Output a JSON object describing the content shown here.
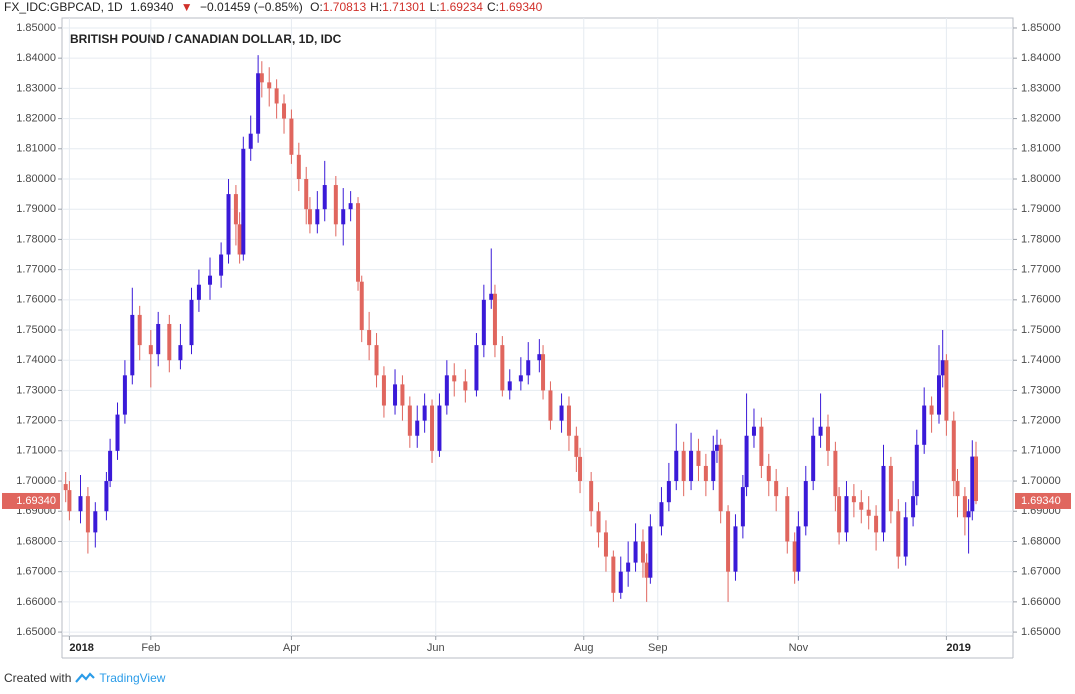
{
  "header": {
    "symbol": "FX_IDC:GBPCAD, 1D",
    "last": "1.69340",
    "arrow": "▼",
    "change": "−0.01459 (−0.85%)",
    "ohlc": [
      {
        "label": "O:",
        "value": "1.70813"
      },
      {
        "label": "H:",
        "value": "1.71301"
      },
      {
        "label": "L:",
        "value": "1.69234"
      },
      {
        "label": "C:",
        "value": "1.69340"
      }
    ]
  },
  "chart_data": {
    "type": "candlestick",
    "title": "BRITISH POUND / CANADIAN DOLLAR, 1D, IDC",
    "up_color": "#3a1ad8",
    "down_color": "#e0665e",
    "grid": true,
    "x": [
      0,
      1,
      4,
      6,
      8,
      11,
      12,
      14,
      16,
      18,
      20,
      23,
      25,
      28,
      31,
      34,
      36,
      39,
      42,
      44,
      46,
      47,
      48,
      50,
      52,
      53,
      55,
      57,
      59,
      61,
      63,
      65,
      66,
      68,
      70,
      73,
      75,
      77,
      79,
      80,
      82,
      84,
      86,
      89,
      91,
      93,
      95,
      97,
      99,
      101,
      103,
      105,
      108,
      111,
      113,
      115,
      116,
      118,
      120,
      123,
      125,
      128,
      129,
      131,
      134,
      136,
      138,
      139,
      142,
      144,
      146,
      148,
      150,
      152,
      154,
      156,
      157,
      158,
      161,
      163,
      165,
      167,
      169,
      171,
      173,
      175,
      176,
      177,
      179,
      181,
      183,
      184,
      186,
      188,
      190,
      192,
      195,
      197,
      198,
      200,
      202,
      204,
      206,
      208,
      209,
      211,
      213,
      215,
      217,
      219,
      221,
      223,
      225,
      227,
      229,
      230,
      232,
      234,
      236,
      237,
      238,
      240,
      241,
      243,
      244,
      245,
      246
    ],
    "open": [
      1.699,
      1.697,
      1.69,
      1.695,
      1.683,
      1.69,
      1.7,
      1.71,
      1.722,
      1.735,
      1.755,
      1.745,
      1.742,
      1.752,
      1.74,
      1.745,
      1.76,
      1.765,
      1.768,
      1.775,
      1.795,
      1.785,
      1.775,
      1.81,
      1.815,
      1.835,
      1.832,
      1.83,
      1.825,
      1.82,
      1.808,
      1.8,
      1.79,
      1.785,
      1.79,
      1.798,
      1.785,
      1.79,
      1.792,
      1.766,
      1.75,
      1.745,
      1.735,
      1.725,
      1.732,
      1.725,
      1.715,
      1.72,
      1.725,
      1.71,
      1.725,
      1.735,
      1.733,
      1.73,
      1.745,
      1.76,
      1.762,
      1.745,
      1.73,
      1.733,
      1.735,
      1.74,
      1.742,
      1.73,
      1.72,
      1.725,
      1.715,
      1.708,
      1.7,
      1.69,
      1.683,
      1.675,
      1.663,
      1.67,
      1.673,
      1.68,
      1.673,
      1.668,
      1.685,
      1.693,
      1.7,
      1.71,
      1.7,
      1.71,
      1.705,
      1.7,
      1.71,
      1.712,
      1.69,
      1.67,
      1.685,
      1.698,
      1.715,
      1.718,
      1.705,
      1.7,
      1.695,
      1.68,
      1.67,
      1.685,
      1.7,
      1.715,
      1.718,
      1.71,
      1.695,
      1.683,
      1.695,
      1.693,
      1.6905,
      1.6885,
      1.683,
      1.705,
      1.69,
      1.675,
      1.688,
      1.695,
      1.712,
      1.725,
      1.722,
      1.735,
      1.74,
      1.72,
      1.7,
      1.695,
      1.688,
      1.69,
      1.70813
    ],
    "high": [
      1.703,
      1.7,
      1.702,
      1.698,
      1.693,
      1.703,
      1.714,
      1.726,
      1.74,
      1.764,
      1.758,
      1.75,
      1.756,
      1.755,
      1.752,
      1.764,
      1.77,
      1.774,
      1.779,
      1.8,
      1.798,
      1.789,
      1.814,
      1.821,
      1.841,
      1.839,
      1.837,
      1.833,
      1.828,
      1.823,
      1.812,
      1.804,
      1.794,
      1.796,
      1.806,
      1.801,
      1.797,
      1.796,
      1.794,
      1.768,
      1.756,
      1.749,
      1.738,
      1.737,
      1.735,
      1.728,
      1.725,
      1.729,
      1.727,
      1.729,
      1.74,
      1.739,
      1.737,
      1.749,
      1.765,
      1.777,
      1.765,
      1.748,
      1.737,
      1.741,
      1.746,
      1.747,
      1.745,
      1.733,
      1.729,
      1.728,
      1.718,
      1.711,
      1.703,
      1.693,
      1.687,
      1.677,
      1.675,
      1.68,
      1.686,
      1.684,
      1.676,
      1.689,
      1.698,
      1.706,
      1.719,
      1.713,
      1.716,
      1.714,
      1.709,
      1.715,
      1.717,
      1.714,
      1.692,
      1.689,
      1.702,
      1.729,
      1.724,
      1.721,
      1.709,
      1.704,
      1.698,
      1.683,
      1.69,
      1.705,
      1.721,
      1.729,
      1.722,
      1.713,
      1.698,
      1.7,
      1.699,
      1.697,
      1.695,
      1.692,
      1.712,
      1.708,
      1.694,
      1.693,
      1.7,
      1.717,
      1.731,
      1.728,
      1.745,
      1.75,
      1.742,
      1.723,
      1.704,
      1.698,
      1.694,
      1.7135,
      1.71301
    ],
    "low": [
      1.693,
      1.687,
      1.686,
      1.676,
      1.678,
      1.687,
      1.698,
      1.707,
      1.719,
      1.732,
      1.74,
      1.731,
      1.738,
      1.736,
      1.737,
      1.742,
      1.756,
      1.76,
      1.764,
      1.772,
      1.778,
      1.772,
      1.773,
      1.806,
      1.812,
      1.827,
      1.824,
      1.82,
      1.815,
      1.805,
      1.796,
      1.785,
      1.782,
      1.782,
      1.786,
      1.781,
      1.778,
      1.786,
      1.763,
      1.746,
      1.74,
      1.731,
      1.721,
      1.722,
      1.72,
      1.711,
      1.711,
      1.716,
      1.706,
      1.708,
      1.722,
      1.728,
      1.726,
      1.728,
      1.741,
      1.757,
      1.741,
      1.728,
      1.727,
      1.73,
      1.732,
      1.736,
      1.727,
      1.717,
      1.716,
      1.71,
      1.703,
      1.696,
      1.685,
      1.678,
      1.67,
      1.66,
      1.661,
      1.665,
      1.67,
      1.668,
      1.66,
      1.666,
      1.682,
      1.69,
      1.697,
      1.695,
      1.697,
      1.7,
      1.695,
      1.697,
      1.706,
      1.686,
      1.66,
      1.667,
      1.681,
      1.695,
      1.711,
      1.701,
      1.695,
      1.69,
      1.676,
      1.666,
      1.667,
      1.682,
      1.697,
      1.711,
      1.705,
      1.69,
      1.679,
      1.68,
      1.688,
      1.686,
      1.684,
      1.677,
      1.68,
      1.686,
      1.671,
      1.672,
      1.685,
      1.692,
      1.709,
      1.716,
      1.719,
      1.731,
      1.715,
      1.695,
      1.688,
      1.682,
      1.676,
      1.687,
      1.69234
    ],
    "close": [
      1.697,
      1.69,
      1.695,
      1.683,
      1.69,
      1.7,
      1.71,
      1.722,
      1.735,
      1.755,
      1.745,
      1.742,
      1.752,
      1.74,
      1.745,
      1.76,
      1.765,
      1.768,
      1.775,
      1.795,
      1.785,
      1.775,
      1.81,
      1.815,
      1.835,
      1.832,
      1.83,
      1.825,
      1.82,
      1.808,
      1.8,
      1.79,
      1.785,
      1.79,
      1.798,
      1.785,
      1.79,
      1.792,
      1.766,
      1.75,
      1.745,
      1.735,
      1.725,
      1.732,
      1.725,
      1.715,
      1.72,
      1.725,
      1.71,
      1.725,
      1.735,
      1.733,
      1.73,
      1.745,
      1.76,
      1.762,
      1.745,
      1.73,
      1.733,
      1.735,
      1.74,
      1.742,
      1.73,
      1.72,
      1.725,
      1.715,
      1.708,
      1.7,
      1.69,
      1.683,
      1.675,
      1.663,
      1.67,
      1.673,
      1.68,
      1.673,
      1.668,
      1.685,
      1.693,
      1.7,
      1.71,
      1.7,
      1.71,
      1.705,
      1.7,
      1.71,
      1.712,
      1.69,
      1.67,
      1.685,
      1.698,
      1.715,
      1.718,
      1.705,
      1.7,
      1.695,
      1.68,
      1.67,
      1.685,
      1.7,
      1.715,
      1.718,
      1.71,
      1.695,
      1.683,
      1.695,
      1.693,
      1.6905,
      1.6885,
      1.683,
      1.705,
      1.69,
      1.675,
      1.688,
      1.695,
      1.712,
      1.725,
      1.722,
      1.735,
      1.74,
      1.72,
      1.7,
      1.695,
      1.688,
      1.69,
      1.7081,
      1.6934
    ],
    "xlim": [
      -1,
      256
    ],
    "xticks": [
      {
        "value": 1,
        "label": "2018"
      },
      {
        "value": 23,
        "label": "Feb"
      },
      {
        "value": 61,
        "label": "Apr"
      },
      {
        "value": 100,
        "label": "Jun"
      },
      {
        "value": 140,
        "label": "Aug"
      },
      {
        "value": 160,
        "label": "Sep"
      },
      {
        "value": 198,
        "label": "Nov"
      },
      {
        "value": 238,
        "label": "2019"
      }
    ],
    "ylim": [
      1.6487,
      1.8533
    ],
    "yticks": [
      {
        "value": 1.65,
        "label": "1.65000"
      },
      {
        "value": 1.66,
        "label": "1.66000"
      },
      {
        "value": 1.67,
        "label": "1.67000"
      },
      {
        "value": 1.68,
        "label": "1.68000"
      },
      {
        "value": 1.69,
        "label": "1.69000"
      },
      {
        "value": 1.7,
        "label": "1.70000"
      },
      {
        "value": 1.71,
        "label": "1.71000"
      },
      {
        "value": 1.72,
        "label": "1.72000"
      },
      {
        "value": 1.73,
        "label": "1.73000"
      },
      {
        "value": 1.74,
        "label": "1.74000"
      },
      {
        "value": 1.75,
        "label": "1.75000"
      },
      {
        "value": 1.76,
        "label": "1.76000"
      },
      {
        "value": 1.77,
        "label": "1.77000"
      },
      {
        "value": 1.78,
        "label": "1.78000"
      },
      {
        "value": 1.79,
        "label": "1.79000"
      },
      {
        "value": 1.8,
        "label": "1.80000"
      },
      {
        "value": 1.81,
        "label": "1.81000"
      },
      {
        "value": 1.82,
        "label": "1.82000"
      },
      {
        "value": 1.83,
        "label": "1.83000"
      },
      {
        "value": 1.84,
        "label": "1.84000"
      },
      {
        "value": 1.85,
        "label": "1.85000"
      }
    ],
    "last_price": {
      "value": 1.6934,
      "label": "1.69340"
    }
  },
  "footer": {
    "prefix": "Created with",
    "brand": "TradingView"
  }
}
